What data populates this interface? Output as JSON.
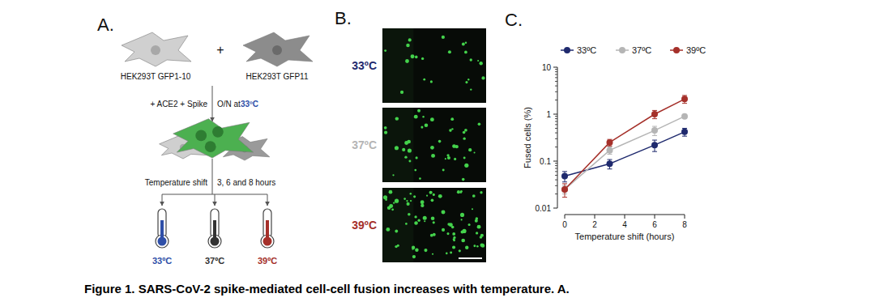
{
  "figure": {
    "caption": "Figure 1. SARS-CoV-2 spike-mediated cell-cell fusion increases with temperature. A."
  },
  "panel_a": {
    "letter": "A.",
    "cells": [
      "HEK293T GFP1-10",
      "HEK293T GFP11"
    ],
    "plus": "+",
    "treatment": "+ ACE2 + Spike",
    "incubation": "O/N at ",
    "incubation_temp": "33ºC",
    "shift": "Temperature shift",
    "shift_times": "3, 6 and 8 hours",
    "temperatures": [
      {
        "label": "33ºC",
        "color": "#2f4fa8"
      },
      {
        "label": "37ºC",
        "color": "#333333"
      },
      {
        "label": "39ºC",
        "color": "#a5302a"
      }
    ]
  },
  "panel_b": {
    "letter": "B.",
    "rows": [
      {
        "label": "33ºC",
        "color": "#1f2a6e"
      },
      {
        "label": "37ºC",
        "color": "#b5b5b5"
      },
      {
        "label": "39ºC",
        "color": "#a5302a"
      }
    ]
  },
  "panel_c": {
    "letter": "C."
  },
  "chart_data": {
    "type": "line",
    "x_label": "Temperature shift (hours)",
    "y_label": "Fused cells (%)",
    "x": [
      0,
      3,
      6,
      8
    ],
    "series": [
      {
        "name": "33ºC",
        "color": "#1f2a6e",
        "marker": "circle",
        "values": [
          0.048,
          0.088,
          0.22,
          0.42
        ],
        "errors": [
          0.012,
          0.02,
          0.06,
          0.08
        ]
      },
      {
        "name": "37ºC",
        "color": "#b5b5b5",
        "marker": "circle",
        "values": [
          0.025,
          0.17,
          0.45,
          0.9
        ],
        "errors": [
          0.005,
          0.03,
          0.1,
          0.08
        ]
      },
      {
        "name": "39ºC",
        "color": "#a5302a",
        "marker": "circle",
        "values": [
          0.025,
          0.25,
          1.0,
          2.1
        ],
        "errors": [
          0.008,
          0.04,
          0.2,
          0.4
        ]
      }
    ],
    "xlim": [
      0,
      8
    ],
    "ylim": [
      0.01,
      10
    ],
    "xticks": [
      0,
      2,
      4,
      6,
      8
    ],
    "yticks": [
      0.01,
      0.1,
      1,
      10
    ],
    "log": "y",
    "grid": false,
    "legend": "top"
  }
}
